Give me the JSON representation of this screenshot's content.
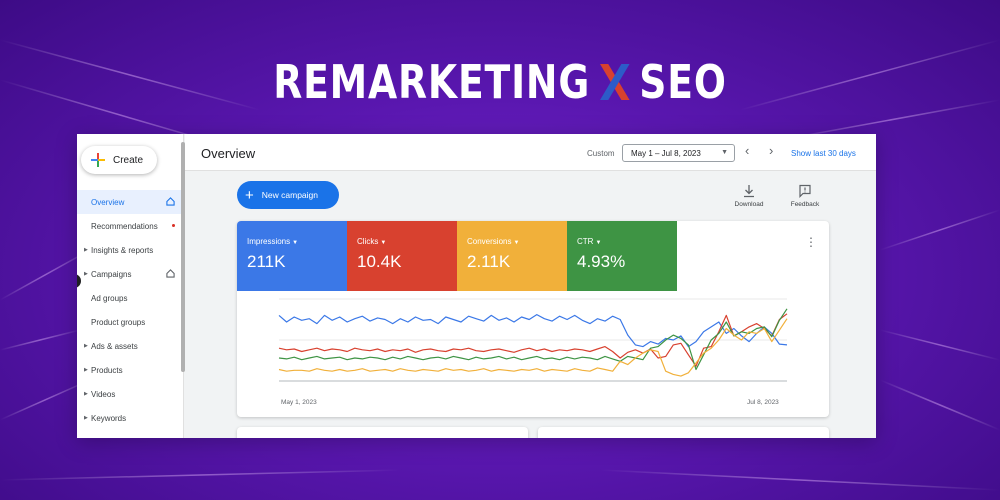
{
  "headline": {
    "left": "REMARKETING",
    "right": "SEO"
  },
  "sidebar": {
    "create_label": "Create",
    "items": [
      {
        "label": "Overview",
        "caret": false
      },
      {
        "label": "Recommendations",
        "caret": false
      },
      {
        "label": "Insights & reports",
        "caret": true
      },
      {
        "label": "Campaigns",
        "caret": true
      },
      {
        "label": "Ad groups",
        "caret": false
      },
      {
        "label": "Product groups",
        "caret": false
      },
      {
        "label": "Ads & assets",
        "caret": true
      },
      {
        "label": "Products",
        "caret": true
      },
      {
        "label": "Videos",
        "caret": true
      },
      {
        "label": "Keywords",
        "caret": true
      }
    ]
  },
  "topbar": {
    "title": "Overview",
    "custom_label": "Custom",
    "date_range": "May 1 – Jul 8, 2023",
    "show_last": "Show last 30 days"
  },
  "toolbar": {
    "new_campaign": "New campaign",
    "download": "Download",
    "feedback": "Feedback"
  },
  "metrics": [
    {
      "label": "Impressions",
      "value": "211K",
      "color": "#3b78e7"
    },
    {
      "label": "Clicks",
      "value": "10.4K",
      "color": "#d8412f"
    },
    {
      "label": "Conversions",
      "value": "2.11K",
      "color": "#f1b03a"
    },
    {
      "label": "CTR",
      "value": "4.93%",
      "color": "#3e9444"
    }
  ],
  "chart_data": {
    "type": "line",
    "x_start_label": "May 1, 2023",
    "x_end_label": "Jul 8, 2023",
    "ylim": [
      0,
      100
    ],
    "series": [
      {
        "color": "#3b78e7",
        "values": [
          80,
          72,
          78,
          74,
          76,
          70,
          80,
          74,
          78,
          72,
          76,
          79,
          73,
          77,
          75,
          70,
          76,
          72,
          78,
          74,
          75,
          70,
          78,
          75,
          72,
          79,
          76,
          73,
          80,
          74,
          77,
          72,
          78,
          75,
          81,
          76,
          73,
          79,
          75,
          80,
          74,
          70,
          76,
          73,
          79,
          75,
          56,
          44,
          42,
          48,
          45,
          52,
          50,
          55,
          42,
          48,
          60,
          66,
          72,
          58,
          64,
          55,
          48,
          58,
          66,
          58,
          45,
          44
        ]
      },
      {
        "color": "#d8412f",
        "values": [
          40,
          38,
          39,
          36,
          38,
          40,
          37,
          39,
          38,
          36,
          40,
          38,
          37,
          39,
          36,
          38,
          37,
          39,
          35,
          38,
          39,
          37,
          36,
          39,
          38,
          40,
          37,
          36,
          38,
          39,
          37,
          35,
          38,
          40,
          37,
          39,
          36,
          38,
          37,
          39,
          38,
          36,
          39,
          42,
          36,
          28,
          35,
          38,
          34,
          39,
          28,
          30,
          44,
          46,
          32,
          18,
          40,
          42,
          60,
          80,
          55,
          60,
          66,
          70,
          64,
          55,
          75,
          82
        ]
      },
      {
        "color": "#3e9444",
        "values": [
          28,
          27,
          29,
          26,
          28,
          30,
          27,
          28,
          29,
          26,
          28,
          27,
          29,
          28,
          26,
          29,
          27,
          30,
          28,
          26,
          28,
          29,
          27,
          30,
          28,
          26,
          29,
          27,
          28,
          30,
          27,
          29,
          26,
          28,
          30,
          27,
          28,
          26,
          29,
          27,
          29,
          28,
          26,
          30,
          27,
          24,
          30,
          28,
          26,
          40,
          42,
          50,
          56,
          52,
          44,
          14,
          32,
          50,
          58,
          72,
          55,
          60,
          58,
          64,
          66,
          54,
          74,
          88
        ]
      },
      {
        "color": "#f1b03a",
        "values": [
          14,
          12,
          13,
          13,
          12,
          15,
          13,
          12,
          14,
          12,
          13,
          15,
          12,
          13,
          14,
          12,
          15,
          13,
          12,
          14,
          13,
          12,
          15,
          13,
          14,
          12,
          13,
          15,
          12,
          14,
          13,
          12,
          14,
          13,
          15,
          12,
          14,
          13,
          12,
          15,
          13,
          12,
          16,
          14,
          12,
          24,
          20,
          28,
          34,
          38,
          36,
          12,
          8,
          6,
          10,
          22,
          34,
          40,
          50,
          64,
          56,
          50,
          60,
          58,
          64,
          48,
          62,
          76
        ]
      }
    ]
  }
}
